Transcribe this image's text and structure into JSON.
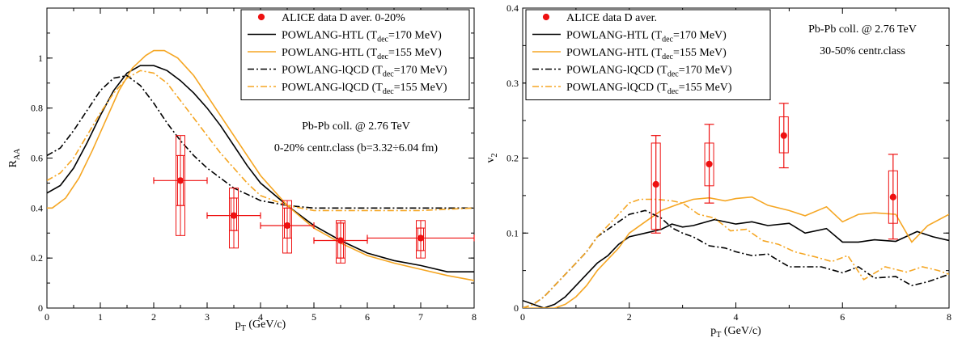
{
  "colors": {
    "black": "#000000",
    "orange": "#f5a623",
    "red": "#ee1111"
  },
  "chart_data": [
    {
      "type": "line",
      "xlabel": "p_T (GeV/c)",
      "xlabel_main": "p",
      "xlabel_sub": "T",
      "xlabel_tail": " (GeV/c)",
      "ylabel": "R_AA",
      "ylabel_main": "R",
      "ylabel_sub": "AA",
      "xlim": [
        0,
        8
      ],
      "ylim": [
        0,
        1.2
      ],
      "xticks": [
        0,
        1,
        2,
        3,
        4,
        5,
        6,
        7,
        8
      ],
      "yticks": [
        0,
        0.2,
        0.4,
        0.6,
        0.8,
        1
      ],
      "ytick_labels": [
        "0",
        "0.2",
        "0.4",
        "0.6",
        "0.8",
        "1"
      ],
      "grid": false,
      "legend_position": "top-right",
      "legend": [
        {
          "text": "ALICE data D aver. 0-20%",
          "sub": "",
          "tail": "",
          "style": "marker"
        },
        {
          "text": "POWLANG-HTL (T",
          "sub": "dec",
          "tail": "=170 MeV)",
          "style": "black-solid"
        },
        {
          "text": "POWLANG-HTL (T",
          "sub": "dec",
          "tail": "=155 MeV)",
          "style": "orange-solid"
        },
        {
          "text": "POWLANG-lQCD (T",
          "sub": "dec",
          "tail": "=170 MeV)",
          "style": "black-dashdot"
        },
        {
          "text": "POWLANG-lQCD (T",
          "sub": "dec",
          "tail": "=155 MeV)",
          "style": "orange-dashdot"
        }
      ],
      "annotations": [
        "Pb-Pb coll. @ 2.76 TeV",
        "0-20% centr.class (b=3.32÷6.04 fm)"
      ],
      "series": [
        {
          "name": "POWLANG-HTL (Tdec=170 MeV)",
          "style": "black-solid",
          "x": [
            0,
            0.25,
            0.5,
            0.75,
            1,
            1.25,
            1.5,
            1.75,
            2,
            2.25,
            2.5,
            2.75,
            3,
            3.25,
            3.5,
            3.75,
            4,
            4.5,
            5,
            5.5,
            6,
            6.5,
            7,
            7.5,
            8
          ],
          "y": [
            0.46,
            0.49,
            0.56,
            0.66,
            0.77,
            0.87,
            0.94,
            0.97,
            0.97,
            0.95,
            0.91,
            0.86,
            0.8,
            0.73,
            0.65,
            0.57,
            0.5,
            0.41,
            0.33,
            0.27,
            0.22,
            0.19,
            0.17,
            0.145,
            0.145
          ]
        },
        {
          "name": "POWLANG-HTL (Tdec=155 MeV)",
          "style": "orange-solid",
          "x": [
            0,
            0.1,
            0.35,
            0.6,
            0.85,
            1.1,
            1.35,
            1.6,
            1.85,
            2,
            2.2,
            2.45,
            2.75,
            3,
            3.25,
            3.5,
            3.75,
            4,
            4.5,
            5,
            5.5,
            6,
            6.5,
            7,
            7.5,
            8
          ],
          "y": [
            0.4,
            0.4,
            0.44,
            0.52,
            0.63,
            0.75,
            0.87,
            0.96,
            1.01,
            1.03,
            1.03,
            1.0,
            0.93,
            0.85,
            0.77,
            0.69,
            0.61,
            0.53,
            0.41,
            0.32,
            0.26,
            0.21,
            0.18,
            0.155,
            0.13,
            0.11
          ]
        },
        {
          "name": "POWLANG-lQCD (Tdec=170 MeV)",
          "style": "black-dashdot",
          "x": [
            0,
            0.25,
            0.5,
            0.75,
            1,
            1.25,
            1.5,
            1.75,
            2,
            2.25,
            2.5,
            2.75,
            3,
            3.25,
            3.5,
            3.75,
            4,
            4.5,
            5,
            5.5,
            6,
            7,
            8
          ],
          "y": [
            0.61,
            0.64,
            0.71,
            0.79,
            0.87,
            0.92,
            0.93,
            0.89,
            0.82,
            0.74,
            0.67,
            0.61,
            0.56,
            0.52,
            0.48,
            0.455,
            0.43,
            0.41,
            0.4,
            0.4,
            0.4,
            0.4,
            0.4
          ]
        },
        {
          "name": "POWLANG-lQCD (Tdec=155 MeV)",
          "style": "orange-dashdot",
          "x": [
            0,
            0.25,
            0.5,
            0.75,
            1,
            1.25,
            1.5,
            1.75,
            2,
            2.25,
            2.5,
            2.75,
            3,
            3.25,
            3.5,
            3.75,
            4,
            4.5,
            5,
            5.5,
            6,
            7,
            8
          ],
          "y": [
            0.51,
            0.54,
            0.6,
            0.69,
            0.78,
            0.86,
            0.92,
            0.95,
            0.94,
            0.9,
            0.83,
            0.76,
            0.69,
            0.62,
            0.56,
            0.5,
            0.45,
            0.41,
            0.39,
            0.39,
            0.39,
            0.39,
            0.4
          ]
        }
      ],
      "data_points": [
        {
          "x": 2.5,
          "y": 0.51,
          "xerr": 0.5,
          "syst_lo": 0.29,
          "syst_hi": 0.69,
          "syst_mid_lo": 0.41,
          "syst_mid_hi": 0.61
        },
        {
          "x": 3.5,
          "y": 0.37,
          "xerr": 0.5,
          "syst_lo": 0.24,
          "syst_hi": 0.48,
          "syst_mid_lo": 0.31,
          "syst_mid_hi": 0.44
        },
        {
          "x": 4.5,
          "y": 0.33,
          "xerr": 0.5,
          "syst_lo": 0.22,
          "syst_hi": 0.43,
          "syst_mid_lo": 0.28,
          "syst_mid_hi": 0.4
        },
        {
          "x": 5.5,
          "y": 0.27,
          "xerr": 0.5,
          "syst_lo": 0.18,
          "syst_hi": 0.35,
          "syst_mid_lo": 0.2,
          "syst_mid_hi": 0.34
        },
        {
          "x": 7.0,
          "y": 0.28,
          "xerr": 1.0,
          "syst_lo": 0.2,
          "syst_hi": 0.35,
          "syst_mid_lo": 0.23,
          "syst_mid_hi": 0.32
        }
      ]
    },
    {
      "type": "line",
      "xlabel": "p_T (GeV/c)",
      "xlabel_main": "p",
      "xlabel_sub": "T",
      "xlabel_tail": " (GeV/c)",
      "ylabel": "v_2",
      "ylabel_main": "v",
      "ylabel_sub": "2",
      "xlim": [
        0,
        8
      ],
      "ylim": [
        0,
        0.4
      ],
      "xticks": [
        0,
        2,
        4,
        6,
        8
      ],
      "yticks": [
        0,
        0.1,
        0.2,
        0.3,
        0.4
      ],
      "ytick_labels": [
        "0",
        "0.1",
        "0.2",
        "0.3",
        "0.4"
      ],
      "grid": false,
      "legend_position": "top-left",
      "legend": [
        {
          "text": "ALICE data D aver.",
          "sub": "",
          "tail": "",
          "style": "marker"
        },
        {
          "text": "POWLANG-HTL (T",
          "sub": "dec",
          "tail": "=170 MeV)",
          "style": "black-solid"
        },
        {
          "text": "POWLANG-HTL (T",
          "sub": "dec",
          "tail": "=155 MeV)",
          "style": "orange-solid"
        },
        {
          "text": "POWLANG-lQCD (T",
          "sub": "dec",
          "tail": "=170 MeV)",
          "style": "black-dashdot"
        },
        {
          "text": "POWLANG-lQCD (T",
          "sub": "dec",
          "tail": "=155 MeV)",
          "style": "orange-dashdot"
        }
      ],
      "annotations": [
        "Pb-Pb coll. @ 2.76 TeV",
        "30-50% centr.class"
      ],
      "series": [
        {
          "name": "POWLANG-HTL (Tdec=170 MeV)",
          "style": "black-solid",
          "x": [
            0,
            0.2,
            0.4,
            0.6,
            0.8,
            1.0,
            1.2,
            1.4,
            1.6,
            1.8,
            2.0,
            2.3,
            2.6,
            2.8,
            3.0,
            3.2,
            3.6,
            4.0,
            4.3,
            4.6,
            5.0,
            5.3,
            5.7,
            6.0,
            6.3,
            6.6,
            7.0,
            7.4,
            7.7,
            8.0
          ],
          "y": [
            0.01,
            0.005,
            0.0,
            0.005,
            0.015,
            0.03,
            0.045,
            0.06,
            0.07,
            0.085,
            0.095,
            0.1,
            0.105,
            0.112,
            0.108,
            0.11,
            0.118,
            0.112,
            0.115,
            0.11,
            0.113,
            0.1,
            0.106,
            0.088,
            0.088,
            0.091,
            0.089,
            0.102,
            0.095,
            0.09
          ]
        },
        {
          "name": "POWLANG-HTL (Tdec=155 MeV)",
          "style": "orange-solid",
          "x": [
            0,
            0.3,
            0.6,
            0.8,
            1.0,
            1.2,
            1.4,
            1.6,
            1.8,
            2.0,
            2.3,
            2.6,
            2.9,
            3.2,
            3.5,
            3.8,
            4.0,
            4.3,
            4.6,
            5.0,
            5.3,
            5.7,
            6.0,
            6.3,
            6.6,
            7.0,
            7.3,
            7.6,
            8.0
          ],
          "y": [
            0.0,
            0.0,
            0.0,
            0.005,
            0.015,
            0.03,
            0.05,
            0.065,
            0.08,
            0.1,
            0.115,
            0.13,
            0.138,
            0.145,
            0.147,
            0.143,
            0.146,
            0.148,
            0.137,
            0.13,
            0.123,
            0.135,
            0.115,
            0.125,
            0.127,
            0.125,
            0.088,
            0.11,
            0.125
          ]
        },
        {
          "name": "POWLANG-lQCD (Tdec=170 MeV)",
          "style": "black-dashdot",
          "x": [
            0,
            0.2,
            0.4,
            0.6,
            0.8,
            1.0,
            1.2,
            1.4,
            1.6,
            1.8,
            2.0,
            2.3,
            2.6,
            2.8,
            3.0,
            3.2,
            3.5,
            3.8,
            4.0,
            4.3,
            4.6,
            5.0,
            5.3,
            5.6,
            6.0,
            6.3,
            6.6,
            7.0,
            7.3,
            7.6,
            8.0
          ],
          "y": [
            0.0,
            0.005,
            0.015,
            0.03,
            0.045,
            0.06,
            0.075,
            0.095,
            0.105,
            0.115,
            0.125,
            0.13,
            0.12,
            0.107,
            0.1,
            0.095,
            0.083,
            0.08,
            0.075,
            0.07,
            0.072,
            0.055,
            0.055,
            0.055,
            0.047,
            0.055,
            0.04,
            0.042,
            0.03,
            0.035,
            0.045
          ]
        },
        {
          "name": "POWLANG-lQCD (Tdec=155 MeV)",
          "style": "orange-dashdot",
          "x": [
            0,
            0.2,
            0.4,
            0.6,
            0.8,
            1.0,
            1.2,
            1.4,
            1.6,
            1.8,
            2.0,
            2.2,
            2.5,
            2.8,
            3.0,
            3.3,
            3.6,
            3.9,
            4.2,
            4.5,
            4.8,
            5.1,
            5.5,
            5.8,
            6.1,
            6.4,
            6.8,
            7.2,
            7.5,
            7.8,
            8.0
          ],
          "y": [
            0.0,
            0.005,
            0.015,
            0.03,
            0.045,
            0.06,
            0.075,
            0.095,
            0.11,
            0.125,
            0.14,
            0.145,
            0.145,
            0.143,
            0.14,
            0.125,
            0.12,
            0.103,
            0.105,
            0.09,
            0.085,
            0.075,
            0.068,
            0.062,
            0.07,
            0.038,
            0.055,
            0.048,
            0.055,
            0.05,
            0.045
          ]
        }
      ],
      "data_points": [
        {
          "x": 2.5,
          "y": 0.165,
          "xerr": 0,
          "stat_lo": 0.1,
          "stat_hi": 0.23,
          "syst_lo": 0.105,
          "syst_hi": 0.22
        },
        {
          "x": 3.5,
          "y": 0.192,
          "xerr": 0,
          "stat_lo": 0.14,
          "stat_hi": 0.245,
          "syst_lo": 0.163,
          "syst_hi": 0.22
        },
        {
          "x": 4.9,
          "y": 0.23,
          "xerr": 0,
          "stat_lo": 0.187,
          "stat_hi": 0.273,
          "syst_lo": 0.207,
          "syst_hi": 0.255
        },
        {
          "x": 6.95,
          "y": 0.148,
          "xerr": 0,
          "stat_lo": 0.092,
          "stat_hi": 0.205,
          "syst_lo": 0.113,
          "syst_hi": 0.183
        }
      ]
    }
  ]
}
